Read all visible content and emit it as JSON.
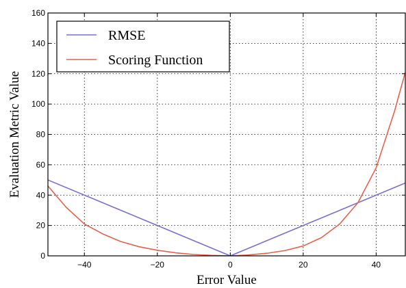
{
  "chart_data": {
    "type": "line",
    "title": "",
    "xlabel": "Error Value",
    "ylabel": "Evaluation Metric Value",
    "xlim": [
      -50,
      48
    ],
    "ylim": [
      0,
      160
    ],
    "xticks": [
      -40,
      -20,
      0,
      20,
      40
    ],
    "yticks": [
      0,
      20,
      40,
      60,
      80,
      100,
      120,
      140,
      160
    ],
    "grid": true,
    "legend_position": "top-left",
    "series": [
      {
        "name": "RMSE",
        "color": "#7570d6",
        "x": [
          -50,
          0,
          48
        ],
        "y": [
          50,
          0,
          48
        ]
      },
      {
        "name": "Scoring Function",
        "color": "#e8604a",
        "x": [
          -50,
          -45,
          -40,
          -35,
          -30,
          -25,
          -20,
          -15,
          -10,
          -5,
          0,
          5,
          10,
          15,
          20,
          25,
          30,
          35,
          40,
          45,
          48
        ],
        "y": [
          46,
          32,
          21,
          14.5,
          9.4,
          6,
          3.7,
          2,
          0.9,
          0.3,
          0,
          0.6,
          1.7,
          3.5,
          6.5,
          12,
          21,
          35,
          58,
          95,
          121
        ]
      }
    ]
  }
}
